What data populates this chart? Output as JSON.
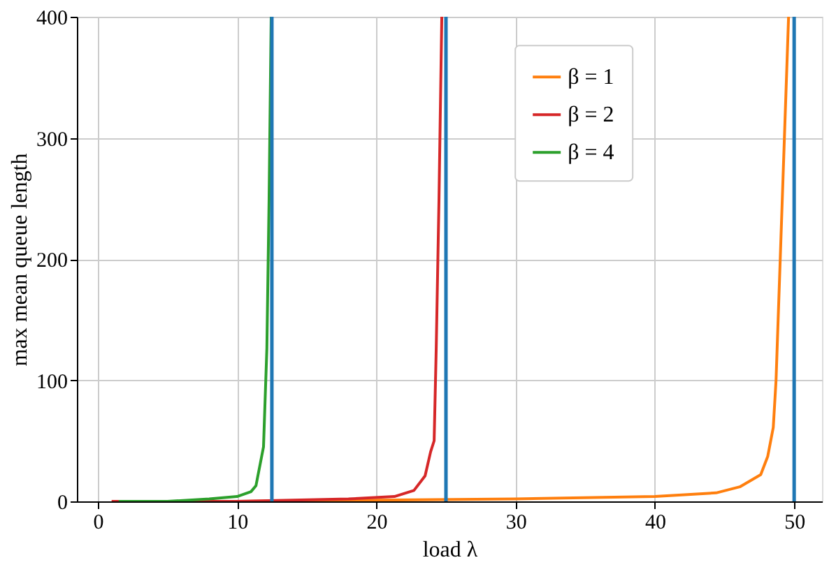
{
  "chart_data": {
    "type": "line",
    "xlabel": "load  λ",
    "ylabel": "max mean queue length",
    "xlim": [
      -1.5,
      52
    ],
    "ylim": [
      0,
      400
    ],
    "xticks": [
      0,
      10,
      20,
      30,
      40,
      50
    ],
    "yticks": [
      0,
      100,
      200,
      300,
      400
    ],
    "grid": true,
    "legend": "top right",
    "line_style": "solid",
    "marker": "none",
    "series": [
      {
        "name": "β = 1",
        "color": "#ff7f0e",
        "x": [
          1,
          10,
          20,
          30,
          40,
          44.4,
          46.1,
          47.6,
          48.1,
          48.5,
          48.7,
          49,
          49.3,
          49.6
        ],
        "values": [
          0,
          0,
          1,
          2,
          4,
          7,
          12,
          22,
          37,
          61,
          100,
          200,
          300,
          400
        ]
      },
      {
        "name": "β = 2",
        "color": "#d62728",
        "x": [
          1,
          10,
          18,
          21.3,
          22.7,
          23.5,
          23.9,
          24.15,
          24.3,
          24.5,
          24.7
        ],
        "values": [
          0,
          0,
          2,
          4,
          9,
          21,
          41,
          50,
          126,
          250,
          400
        ]
      },
      {
        "name": "β = 4",
        "color": "#2ca02c",
        "x": [
          1.5,
          5,
          8,
          10,
          11,
          11.36,
          11.9,
          12.14,
          12.3,
          12.45
        ],
        "values": [
          0,
          0,
          2,
          4,
          8,
          13,
          45,
          126,
          250,
          400
        ]
      }
    ],
    "ref_lines": [
      {
        "axis": "x",
        "value": 12.5,
        "color": "#1f77b4"
      },
      {
        "axis": "x",
        "value": 25,
        "color": "#1f77b4"
      },
      {
        "axis": "x",
        "value": 50,
        "color": "#1f77b4"
      }
    ]
  }
}
